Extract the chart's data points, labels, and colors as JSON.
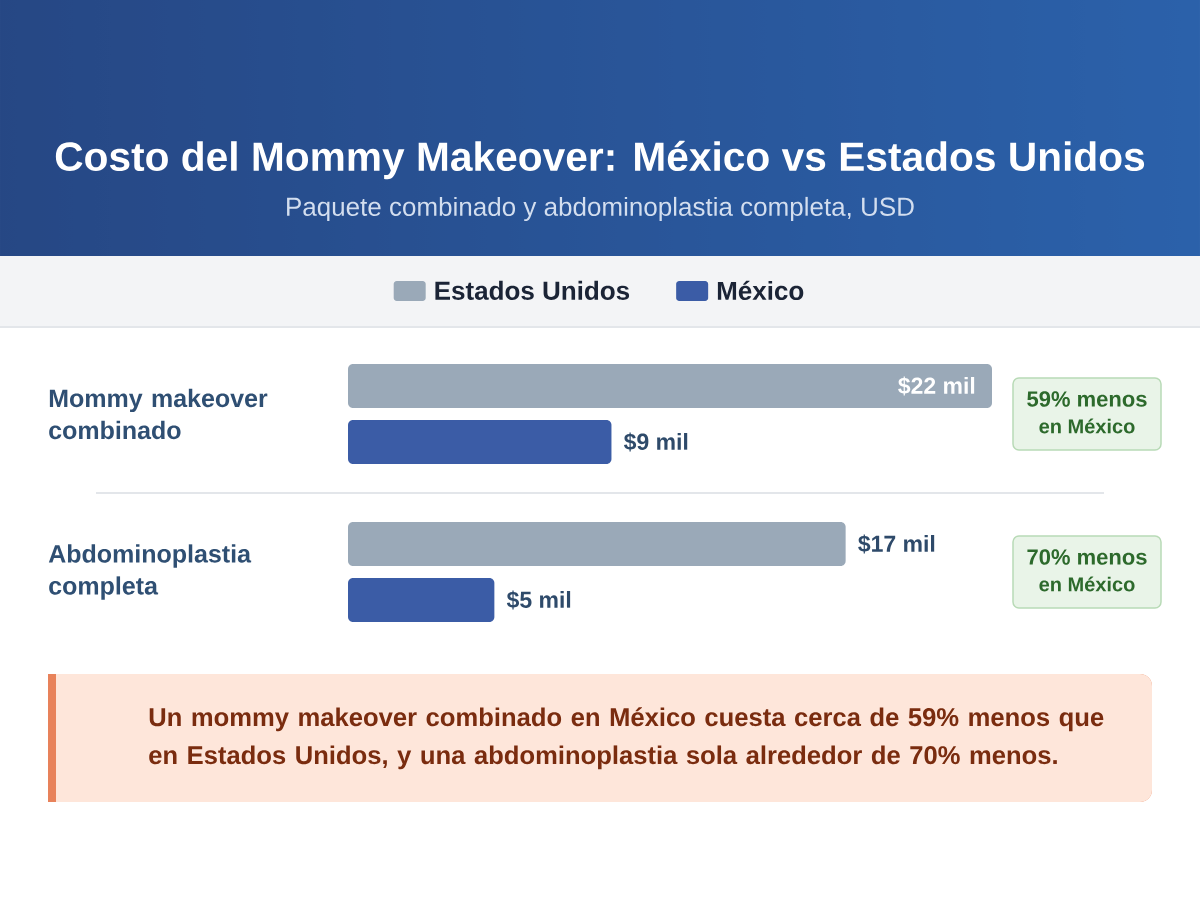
{
  "chart_data": {
    "type": "bar",
    "orientation": "horizontal",
    "title": "Costo del Mommy Makeover: México vs Estados Unidos",
    "subtitle": "Paquete combinado y abdominoplastia completa, USD",
    "categories": [
      "Mommy makeover combinado",
      "Abdominoplastia completa"
    ],
    "series": [
      {
        "name": "Estados Unidos",
        "color": "#9aa9b8",
        "values": [
          22,
          17
        ],
        "value_labels": [
          "$22 mil",
          "$17 mil"
        ]
      },
      {
        "name": "México",
        "color": "#3b5ca6",
        "values": [
          9,
          5
        ],
        "value_labels": [
          "$9 mil",
          "$5 mil"
        ]
      }
    ],
    "legend": "top",
    "tick_labels": "y",
    "annotations": [
      "59% menos",
      "en México",
      "70% menos",
      "en México",
      "Un mommy makeover combinado en México cuesta cerca de 59% menos que en Estados Unidos, y una abdominoplastia sola alrededor de 70% menos."
    ]
  }
}
